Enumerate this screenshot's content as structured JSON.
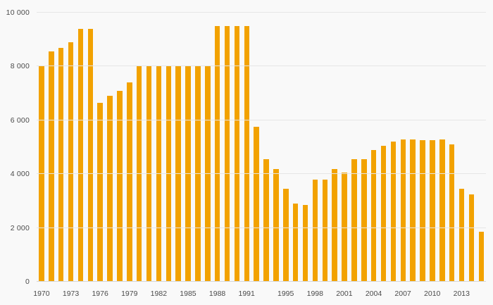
{
  "page": {
    "background_color": "#f9f9f9",
    "text_color": "#4a4a4a",
    "gridline_color": "#e6e6e6"
  },
  "chart_data": {
    "type": "bar",
    "title": "",
    "xlabel": "",
    "ylabel": "",
    "ylim": [
      0,
      10000
    ],
    "grid": true,
    "legend_position": "none",
    "bar_color": "#f2a200",
    "x": [
      1970,
      1971,
      1972,
      1973,
      1974,
      1975,
      1976,
      1977,
      1978,
      1979,
      1980,
      1981,
      1982,
      1983,
      1984,
      1985,
      1986,
      1987,
      1988,
      1989,
      1990,
      1991,
      1992,
      1993,
      1994,
      1995,
      1996,
      1997,
      1998,
      1999,
      2000,
      2001,
      2002,
      2003,
      2004,
      2005,
      2006,
      2007,
      2008,
      2009,
      2010,
      2011,
      2012,
      2013,
      2014,
      2015
    ],
    "values": [
      8000,
      8550,
      8700,
      8900,
      9400,
      9400,
      6650,
      6900,
      7100,
      7400,
      8000,
      8000,
      8000,
      8000,
      8000,
      8000,
      8000,
      8000,
      9500,
      9500,
      9500,
      9500,
      5750,
      4550,
      4200,
      3450,
      2900,
      2850,
      3800,
      3800,
      4200,
      4050,
      4550,
      4550,
      4900,
      5050,
      5200,
      5300,
      5300,
      5250,
      5250,
      5300,
      5100,
      3450,
      3250,
      1850
    ],
    "y_ticks": [
      0,
      2000,
      4000,
      6000,
      8000,
      10000
    ],
    "y_tick_labels": [
      "0",
      "2 000",
      "4 000",
      "6 000",
      "8 000",
      "10 000"
    ],
    "x_tick_years": [
      1970,
      1973,
      1976,
      1979,
      1982,
      1985,
      1988,
      1991,
      1995,
      1998,
      2001,
      2004,
      2007,
      2010,
      2013
    ]
  }
}
